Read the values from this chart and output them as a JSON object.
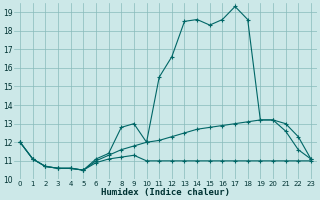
{
  "xlabel": "Humidex (Indice chaleur)",
  "bg_color": "#cce8e8",
  "grid_color": "#88bbbb",
  "line_color": "#006666",
  "xlim": [
    -0.5,
    23.5
  ],
  "ylim": [
    10,
    19.5
  ],
  "yticks": [
    10,
    11,
    12,
    13,
    14,
    15,
    16,
    17,
    18,
    19
  ],
  "xticks": [
    0,
    1,
    2,
    3,
    4,
    5,
    6,
    7,
    8,
    9,
    10,
    11,
    12,
    13,
    14,
    15,
    16,
    17,
    18,
    19,
    20,
    21,
    22,
    23
  ],
  "curve1_x": [
    0,
    1,
    2,
    3,
    4,
    5,
    6,
    7,
    8,
    9,
    10,
    11,
    12,
    13,
    14,
    15,
    16,
    17,
    18,
    19,
    20,
    21,
    22,
    23
  ],
  "curve1_y": [
    12.0,
    11.1,
    10.7,
    10.6,
    10.6,
    10.5,
    11.1,
    11.4,
    12.8,
    13.0,
    12.0,
    15.5,
    16.6,
    18.5,
    18.6,
    18.3,
    18.6,
    19.3,
    18.6,
    13.2,
    13.2,
    12.6,
    11.6,
    11.1
  ],
  "curve2_x": [
    0,
    1,
    2,
    3,
    4,
    5,
    6,
    7,
    8,
    9,
    10,
    11,
    12,
    13,
    14,
    15,
    16,
    17,
    18,
    19,
    20,
    21,
    22,
    23
  ],
  "curve2_y": [
    12.0,
    11.1,
    10.7,
    10.6,
    10.6,
    10.5,
    11.0,
    11.3,
    11.6,
    11.8,
    12.0,
    12.1,
    12.3,
    12.5,
    12.7,
    12.8,
    12.9,
    13.0,
    13.1,
    13.2,
    13.2,
    13.0,
    12.3,
    11.1
  ],
  "curve3_x": [
    0,
    1,
    2,
    3,
    4,
    5,
    6,
    7,
    8,
    9,
    10,
    11,
    12,
    13,
    14,
    15,
    16,
    17,
    18,
    19,
    20,
    21,
    22,
    23
  ],
  "curve3_y": [
    12.0,
    11.1,
    10.7,
    10.6,
    10.6,
    10.5,
    10.9,
    11.1,
    11.2,
    11.3,
    11.0,
    11.0,
    11.0,
    11.0,
    11.0,
    11.0,
    11.0,
    11.0,
    11.0,
    11.0,
    11.0,
    11.0,
    11.0,
    11.0
  ]
}
